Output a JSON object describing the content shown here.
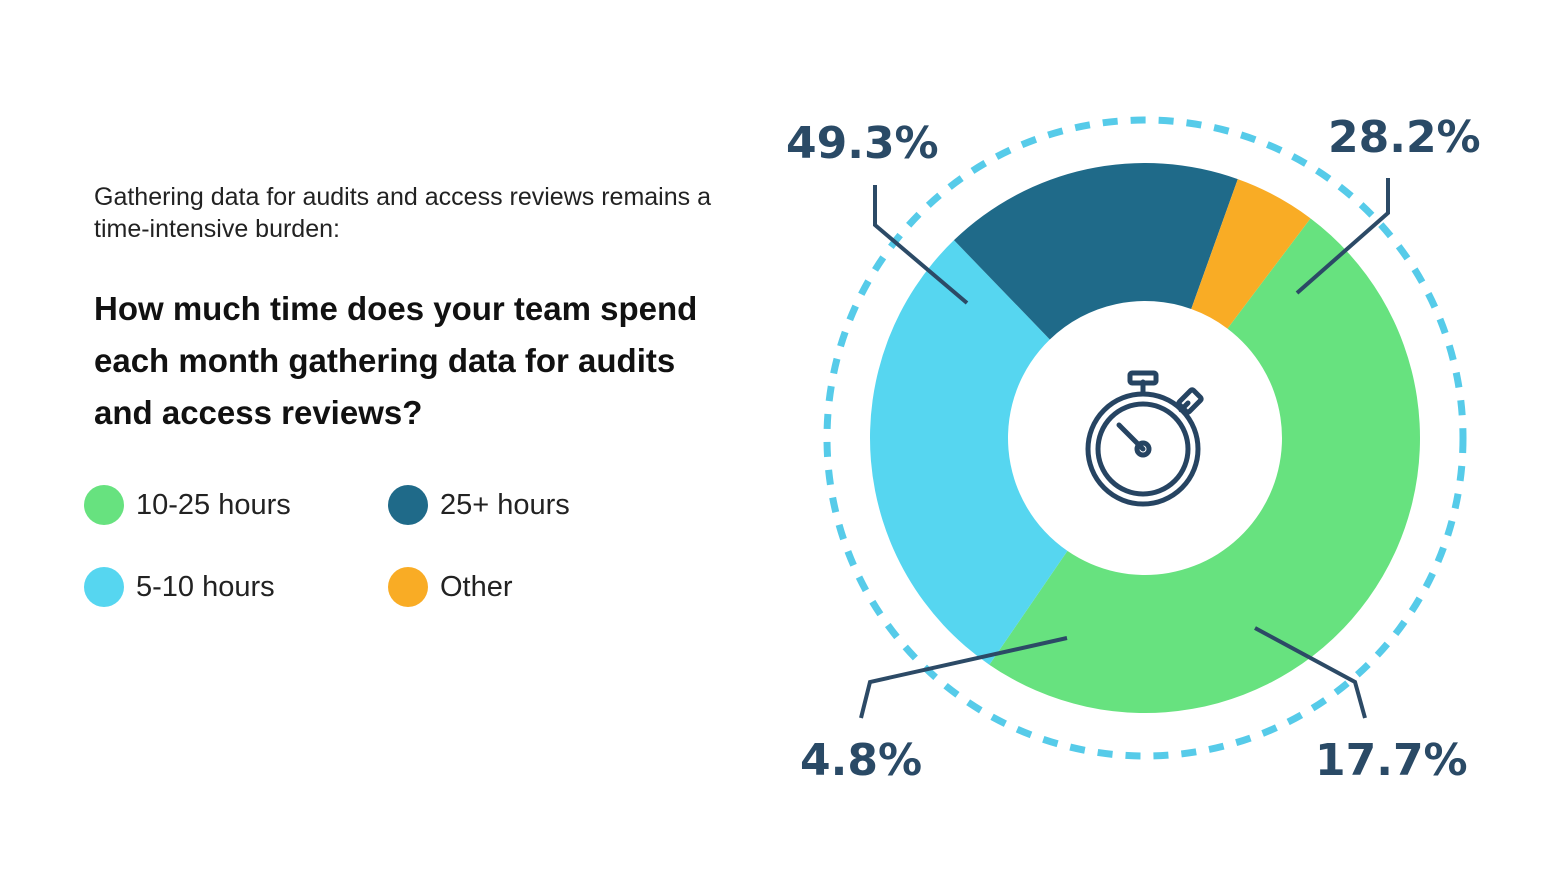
{
  "intro_text": "Gathering data for audits and access reviews remains a time-intensive burden:",
  "question_text": "How much time does your team spend each month gathering data for audits and access reviews?",
  "colors": {
    "label": "#2a4a66",
    "dashed_ring": "#56cbe9",
    "leader": "#2c4a66",
    "icon": "#264462"
  },
  "center_icon": "stopwatch-icon",
  "legend": [
    {
      "label": "10-25 hours",
      "color": "#67e27f"
    },
    {
      "label": "25+ hours",
      "color": "#1f6a89"
    },
    {
      "label": "5-10 hours",
      "color": "#56d6f0"
    },
    {
      "label": "Other",
      "color": "#f9ac25"
    }
  ],
  "chart_data": {
    "type": "pie",
    "donut": true,
    "categories": [
      "10-25 hours",
      "5-10 hours",
      "25+ hours",
      "Other"
    ],
    "values": [
      49.3,
      28.2,
      17.7,
      4.8
    ],
    "unit": "%",
    "data_labels": [
      "49.3%",
      "28.2%",
      "17.7%",
      "4.8%"
    ],
    "colors": [
      "#67e27f",
      "#56d6f0",
      "#1f6a89",
      "#f9ac25"
    ],
    "legend": "left"
  }
}
